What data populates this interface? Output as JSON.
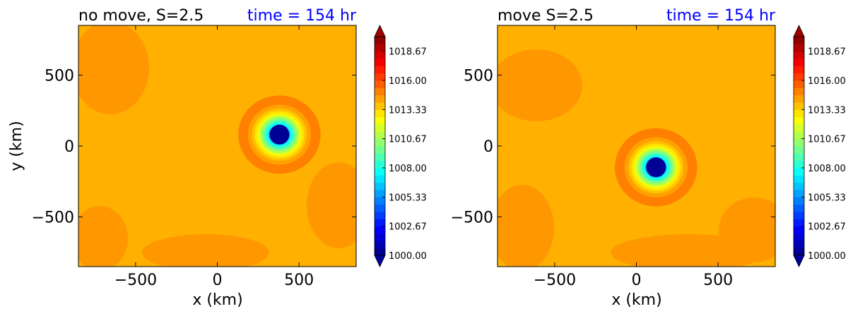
{
  "colors": {
    "title_text": "#000000",
    "time_text": "#0000ff",
    "background_field": "#ffb000",
    "darker_patch": "#ff9800"
  },
  "chart_data": [
    {
      "type": "heatmap",
      "title": "no move, S=2.5",
      "time_label": "time = 154 hr",
      "xlabel": "x (km)",
      "ylabel": "y (km)",
      "xlim": [
        -850,
        850
      ],
      "ylim": [
        -850,
        850
      ],
      "xticks": [
        -500,
        0,
        500
      ],
      "yticks": [
        -500,
        0,
        500
      ],
      "xtick_labels": [
        "−500",
        "0",
        "500"
      ],
      "ytick_labels": [
        "−500",
        "0",
        "500"
      ],
      "center": {
        "x": 380,
        "y": 80
      },
      "minimum_pressure_hPa": 1000.0,
      "colorbar": {
        "min": 1000.0,
        "max": 1020.0,
        "extend": "both",
        "tick_values": [
          1000.0,
          1002.67,
          1005.33,
          1008.0,
          1010.67,
          1013.33,
          1016.0,
          1018.67
        ],
        "tick_labels": [
          "1000.00",
          "1002.67",
          "1005.33",
          "1008.00",
          "1010.67",
          "1013.33",
          "1016.00",
          "1018.67"
        ]
      }
    },
    {
      "type": "heatmap",
      "title": "move S=2.5",
      "time_label": "time = 154 hr",
      "xlabel": "x (km)",
      "ylabel": "",
      "xlim": [
        -850,
        850
      ],
      "ylim": [
        -850,
        850
      ],
      "xticks": [
        -500,
        0,
        500
      ],
      "yticks": [
        -500,
        0,
        500
      ],
      "xtick_labels": [
        "−500",
        "0",
        "500"
      ],
      "ytick_labels": [
        "−500",
        "0",
        "500"
      ],
      "center": {
        "x": 120,
        "y": -150
      },
      "minimum_pressure_hPa": 1000.0,
      "colorbar": {
        "min": 1000.0,
        "max": 1020.0,
        "extend": "both",
        "tick_values": [
          1000.0,
          1002.67,
          1005.33,
          1008.0,
          1010.67,
          1013.33,
          1016.0,
          1018.67
        ],
        "tick_labels": [
          "1000.00",
          "1002.67",
          "1005.33",
          "1008.00",
          "1010.67",
          "1013.33",
          "1016.00",
          "1018.67"
        ]
      }
    }
  ]
}
